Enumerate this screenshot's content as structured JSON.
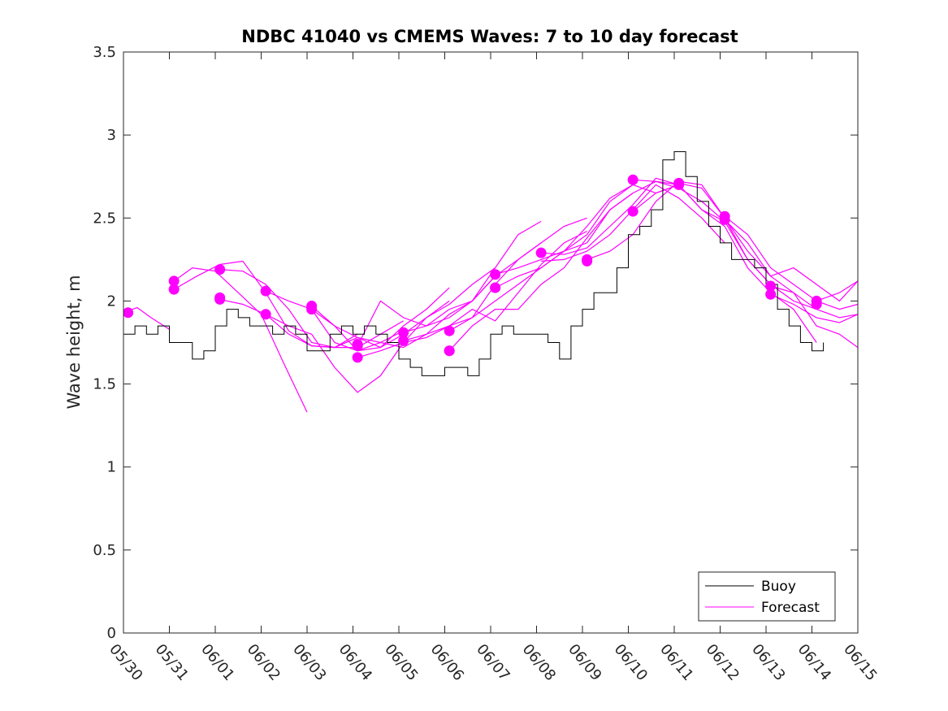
{
  "chart_data": {
    "type": "line",
    "title": "NDBC 41040 vs CMEMS Waves: 7 to 10 day forecast",
    "ylabel": "Wave height, m",
    "xlabel": "",
    "xlim": [
      0,
      16
    ],
    "ylim": [
      0,
      3.5
    ],
    "yticks": [
      0,
      0.5,
      1,
      1.5,
      2,
      2.5,
      3,
      3.5
    ],
    "ytick_labels": [
      "0",
      "0.5",
      "1",
      "1.5",
      "2",
      "2.5",
      "3",
      "3.5"
    ],
    "xticks": [
      0,
      1,
      2,
      3,
      4,
      5,
      6,
      7,
      8,
      9,
      10,
      11,
      12,
      13,
      14,
      15,
      16
    ],
    "xtick_labels": [
      "05/30",
      "05/31",
      "06/01",
      "06/02",
      "06/03",
      "06/04",
      "06/05",
      "06/06",
      "06/07",
      "06/08",
      "06/09",
      "06/10",
      "06/11",
      "06/12",
      "06/13",
      "06/14",
      "06/15"
    ],
    "grid": false,
    "legend_position": "bottom-right",
    "series": [
      {
        "name": "Buoy",
        "color": "#000000",
        "x": [
          0,
          0.25,
          0.5,
          0.75,
          1,
          1.25,
          1.5,
          1.75,
          2,
          2.25,
          2.5,
          2.75,
          3,
          3.25,
          3.5,
          3.75,
          4,
          4.25,
          4.5,
          4.75,
          5,
          5.25,
          5.5,
          5.75,
          6,
          6.25,
          6.5,
          6.75,
          7,
          7.25,
          7.5,
          7.75,
          8,
          8.25,
          8.5,
          8.75,
          9,
          9.25,
          9.5,
          9.75,
          10,
          10.25,
          10.5,
          10.75,
          11,
          11.25,
          11.5,
          11.75,
          12,
          12.25,
          12.5,
          12.75,
          13,
          13.25,
          13.5,
          13.75,
          14,
          14.25,
          14.5,
          14.75,
          15,
          15.25
        ],
        "y": [
          1.8,
          1.85,
          1.8,
          1.85,
          1.75,
          1.75,
          1.65,
          1.7,
          1.85,
          1.95,
          1.9,
          1.85,
          1.85,
          1.8,
          1.85,
          1.8,
          1.7,
          1.7,
          1.8,
          1.85,
          1.8,
          1.85,
          1.8,
          1.75,
          1.65,
          1.6,
          1.55,
          1.55,
          1.6,
          1.6,
          1.55,
          1.65,
          1.8,
          1.85,
          1.8,
          1.8,
          1.8,
          1.75,
          1.65,
          1.85,
          1.95,
          2.05,
          2.05,
          2.2,
          2.4,
          2.45,
          2.55,
          2.85,
          2.9,
          2.75,
          2.6,
          2.45,
          2.35,
          2.25,
          2.25,
          2.2,
          2.1,
          1.95,
          1.85,
          1.75,
          1.7,
          1.75
        ]
      },
      {
        "name": "Forecast",
        "color": "#ff00ff",
        "segments": [
          {
            "x": [
              0,
              0.3,
              0.6,
              1.0
            ],
            "y": [
              1.93,
              1.96,
              1.9,
              1.83
            ]
          },
          {
            "x": [
              1.1,
              1.5,
              2.0,
              2.5,
              3.0,
              3.5,
              4.0
            ],
            "y": [
              2.12,
              2.2,
              2.18,
              2.05,
              1.92,
              1.62,
              1.33
            ]
          },
          {
            "x": [
              1.1,
              1.6,
              2.1,
              2.6,
              3.1,
              3.6,
              4.1,
              4.6,
              5.1
            ],
            "y": [
              2.07,
              2.15,
              2.22,
              2.24,
              2.05,
              1.82,
              1.73,
              1.72,
              1.8
            ]
          },
          {
            "x": [
              2.1,
              2.6,
              3.1,
              3.6,
              4.1,
              4.6,
              5.1,
              5.6,
              6.1
            ],
            "y": [
              2.19,
              2.18,
              2.1,
              1.95,
              1.75,
              1.72,
              1.78,
              1.75,
              1.82
            ]
          },
          {
            "x": [
              2.1,
              2.6,
              3.1,
              3.6,
              4.1,
              4.6,
              5.1,
              5.6,
              6.1
            ],
            "y": [
              2.01,
              1.98,
              1.92,
              1.8,
              1.73,
              1.72,
              1.72,
              1.8,
              1.88
            ]
          },
          {
            "x": [
              3.1,
              3.6,
              4.1,
              4.6,
              5.1,
              5.6,
              6.1,
              6.6,
              7.1
            ],
            "y": [
              2.06,
              2.0,
              1.95,
              1.75,
              1.7,
              1.72,
              1.85,
              1.95,
              2.08
            ]
          },
          {
            "x": [
              3.1,
              3.6,
              4.1,
              4.6,
              5.1,
              5.6,
              6.1,
              6.6,
              7.1
            ],
            "y": [
              1.92,
              1.85,
              1.8,
              1.6,
              1.45,
              1.55,
              1.75,
              1.9,
              2.0
            ]
          },
          {
            "x": [
              4.1,
              4.6,
              5.1,
              5.6,
              6.1,
              6.6,
              7.1,
              7.6,
              8.1
            ],
            "y": [
              1.97,
              1.85,
              1.78,
              1.72,
              1.8,
              1.9,
              1.98,
              2.1,
              2.2
            ]
          },
          {
            "x": [
              4.1,
              4.6,
              5.1,
              5.6,
              6.1,
              6.6,
              7.1,
              7.6,
              8.1
            ],
            "y": [
              1.95,
              1.85,
              1.7,
              1.75,
              1.72,
              1.8,
              1.92,
              2.0,
              2.15
            ]
          },
          {
            "x": [
              5.1,
              5.6,
              6.1,
              6.6,
              7.1,
              7.6,
              8.1,
              8.6,
              9.1
            ],
            "y": [
              1.73,
              2.0,
              1.9,
              1.85,
              1.95,
              2.0,
              2.2,
              2.4,
              2.48
            ]
          },
          {
            "x": [
              5.1,
              5.6,
              6.1,
              6.6,
              7.1,
              7.6,
              8.1,
              8.6,
              9.1
            ],
            "y": [
              1.66,
              1.7,
              1.75,
              1.78,
              1.85,
              1.9,
              2.1,
              2.25,
              2.35
            ]
          },
          {
            "x": [
              6.1,
              6.6,
              7.1,
              7.6,
              8.1,
              8.6,
              9.1,
              9.6,
              10.1
            ],
            "y": [
              1.81,
              1.85,
              1.9,
              2.0,
              2.15,
              2.25,
              2.35,
              2.45,
              2.5
            ]
          },
          {
            "x": [
              6.1,
              6.6,
              7.1,
              7.6,
              8.1,
              8.6,
              9.1,
              9.6,
              10.1
            ],
            "y": [
              1.76,
              1.8,
              1.85,
              1.95,
              1.88,
              2.05,
              2.22,
              2.35,
              2.42
            ]
          },
          {
            "x": [
              7.1,
              7.6,
              8.1,
              8.6,
              9.1,
              9.6,
              10.1,
              10.6,
              11.1
            ],
            "y": [
              1.82,
              1.9,
              2.0,
              2.1,
              2.2,
              2.3,
              2.45,
              2.62,
              2.7
            ]
          },
          {
            "x": [
              7.1,
              7.6,
              8.1,
              8.6,
              9.1,
              9.6,
              10.1,
              10.6,
              11.1
            ],
            "y": [
              1.7,
              1.85,
              1.95,
              1.95,
              2.1,
              2.2,
              2.38,
              2.55,
              2.65
            ]
          },
          {
            "x": [
              8.1,
              8.6,
              9.1,
              9.6,
              10.1,
              10.6,
              11.1,
              11.6,
              12.1
            ],
            "y": [
              2.16,
              2.2,
              2.25,
              2.3,
              2.4,
              2.6,
              2.7,
              2.65,
              2.7
            ]
          },
          {
            "x": [
              8.1,
              8.6,
              9.1,
              9.6,
              10.1,
              10.6,
              11.1,
              11.6,
              12.1
            ],
            "y": [
              2.08,
              2.15,
              2.2,
              2.3,
              2.35,
              2.55,
              2.65,
              2.72,
              2.7
            ]
          },
          {
            "x": [
              9.1,
              9.6,
              10.1,
              10.6,
              11.1,
              11.6,
              12.1,
              12.6,
              13.1
            ],
            "y": [
              2.29,
              2.28,
              2.32,
              2.45,
              2.58,
              2.74,
              2.7,
              2.55,
              2.48
            ]
          },
          {
            "x": [
              9.1,
              9.6,
              10.1,
              10.6,
              11.1,
              11.6,
              12.1,
              12.6,
              13.1
            ],
            "y": [
              2.24,
              2.25,
              2.3,
              2.4,
              2.55,
              2.7,
              2.62,
              2.5,
              2.35
            ]
          },
          {
            "x": [
              10.1,
              10.6,
              11.1,
              11.6,
              12.1,
              12.6,
              13.1,
              13.6,
              14.1
            ],
            "y": [
              2.25,
              2.3,
              2.4,
              2.6,
              2.72,
              2.7,
              2.5,
              2.25,
              2.1
            ]
          },
          {
            "x": [
              11.1,
              11.6,
              12.1,
              12.6,
              13.1,
              13.6,
              14.1,
              14.6,
              15.1
            ],
            "y": [
              2.73,
              2.72,
              2.68,
              2.6,
              2.48,
              2.25,
              2.1,
              2.0,
              1.95
            ]
          },
          {
            "x": [
              11.1,
              11.6,
              12.1,
              12.6,
              13.1,
              13.6,
              14.1,
              14.6,
              15.1
            ],
            "y": [
              2.54,
              2.65,
              2.7,
              2.55,
              2.45,
              2.2,
              2.05,
              1.95,
              1.75
            ]
          },
          {
            "x": [
              12.1,
              12.6,
              13.1,
              13.6,
              14.1,
              14.6,
              15.1,
              15.6,
              16.0
            ],
            "y": [
              2.71,
              2.68,
              2.5,
              2.3,
              2.15,
              2.2,
              2.1,
              2.0,
              2.12
            ]
          },
          {
            "x": [
              13.1,
              13.6,
              14.1,
              14.6,
              15.1,
              15.6,
              16.0
            ],
            "y": [
              2.51,
              2.4,
              2.2,
              2.1,
              2.0,
              1.95,
              1.98
            ]
          },
          {
            "x": [
              13.1,
              13.6,
              14.1,
              14.6,
              15.1,
              15.6,
              16.0
            ],
            "y": [
              2.49,
              2.35,
              2.15,
              2.05,
              1.95,
              1.9,
              1.92
            ]
          },
          {
            "x": [
              14.1,
              14.6,
              15.1,
              15.6,
              16.0
            ],
            "y": [
              2.09,
              2.05,
              1.85,
              1.8,
              1.72
            ]
          },
          {
            "x": [
              14.1,
              14.6,
              15.1,
              15.6,
              16.0
            ],
            "y": [
              2.04,
              1.98,
              1.9,
              1.87,
              1.92
            ]
          },
          {
            "x": [
              15.1,
              15.6,
              16.0
            ],
            "y": [
              2.0,
              2.05,
              2.12
            ]
          }
        ],
        "markers": {
          "x": [
            0.1,
            1.1,
            1.1,
            2.1,
            2.1,
            2.1,
            3.1,
            3.1,
            4.1,
            4.1,
            5.1,
            5.1,
            5.1,
            6.1,
            6.1,
            7.1,
            7.1,
            7.1,
            8.1,
            8.1,
            8.1,
            9.1,
            10.1,
            10.1,
            11.1,
            11.1,
            12.1,
            12.1,
            13.1,
            13.1,
            14.1,
            14.1,
            15.1,
            15.1
          ],
          "y": [
            1.93,
            2.12,
            2.07,
            2.19,
            2.01,
            2.02,
            2.06,
            1.92,
            1.97,
            1.95,
            1.73,
            1.66,
            1.74,
            1.81,
            1.76,
            1.82,
            1.7,
            1.7,
            2.16,
            2.08,
            2.08,
            2.29,
            2.24,
            2.25,
            2.73,
            2.54,
            2.71,
            2.7,
            2.51,
            2.49,
            2.09,
            2.04,
            2.0,
            1.98
          ]
        }
      }
    ]
  }
}
